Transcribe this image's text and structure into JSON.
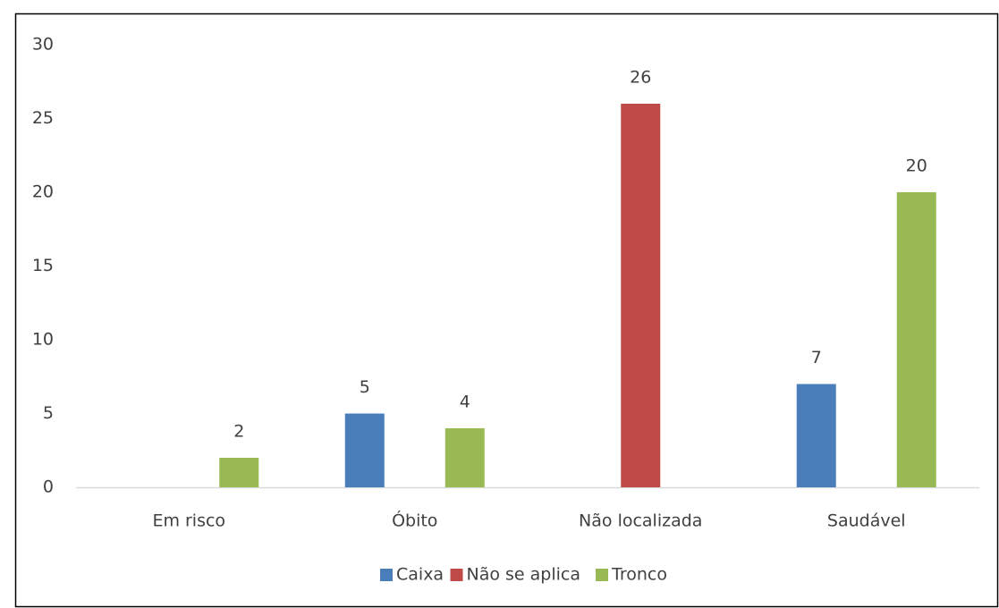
{
  "chart_data": {
    "type": "bar",
    "categories": [
      "Em risco",
      "Óbito",
      "Não localizada",
      "Saudável"
    ],
    "series": [
      {
        "name": "Caixa",
        "color": "#4a7ebb",
        "values": [
          null,
          5,
          null,
          7
        ]
      },
      {
        "name": "Não se aplica",
        "color": "#be4b48",
        "values": [
          null,
          null,
          26,
          null
        ]
      },
      {
        "name": "Tronco",
        "color": "#98b954",
        "values": [
          2,
          4,
          null,
          20
        ]
      }
    ],
    "ylim": [
      0,
      30
    ],
    "yticks": [
      0,
      5,
      10,
      15,
      20,
      25,
      30
    ],
    "grid": false,
    "legend": "bottom"
  }
}
